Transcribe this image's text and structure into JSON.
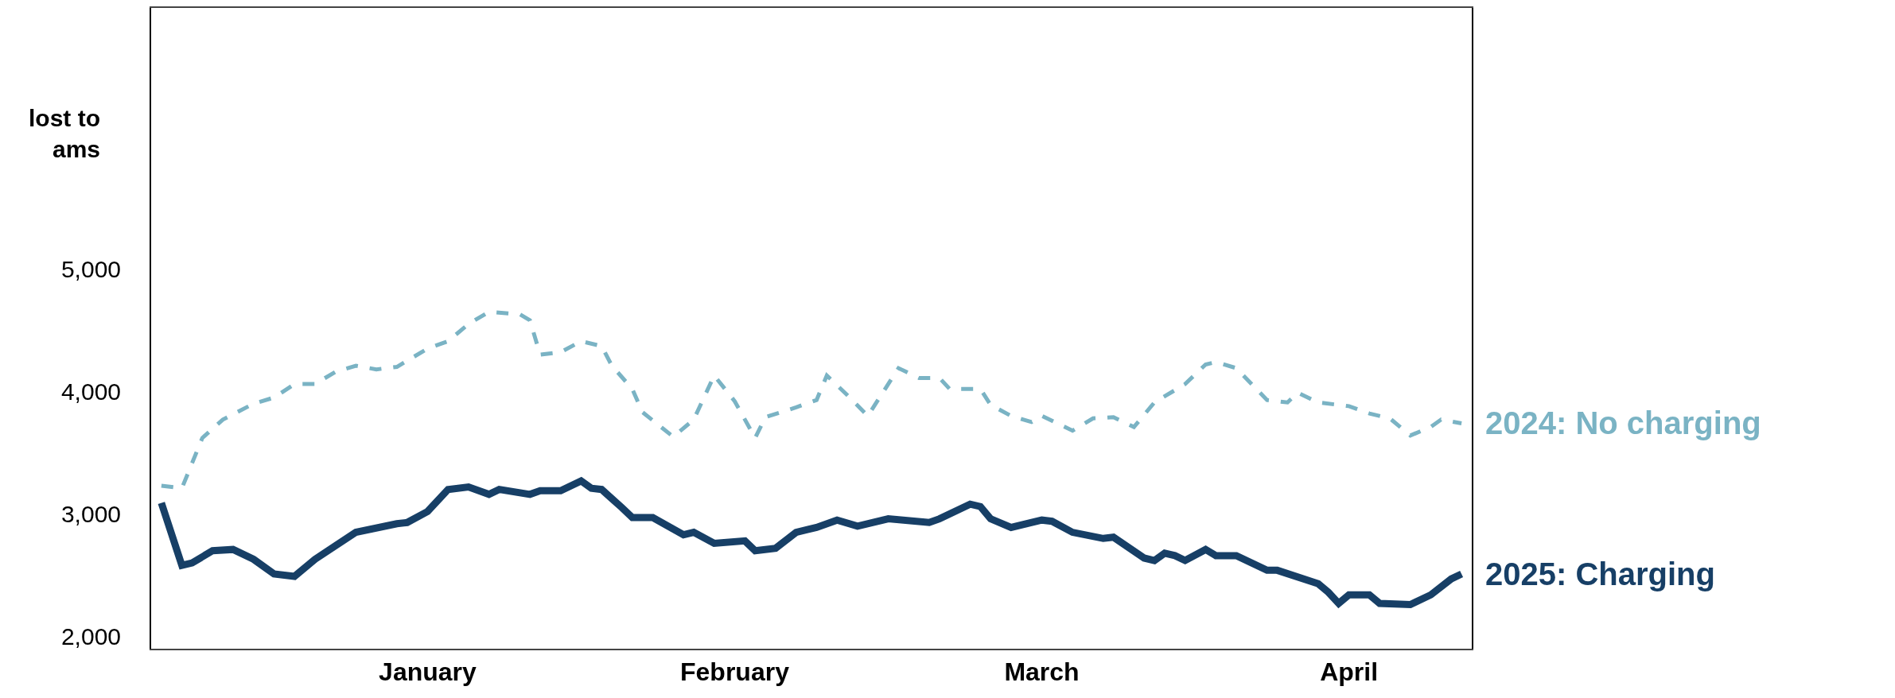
{
  "chart_data": {
    "type": "line",
    "ylabel": "lost to\nams",
    "xlim": [
      "2024-12-19",
      "2025-04-27"
    ],
    "xticks": [
      {
        "value": "2025-01-15",
        "label": "January"
      },
      {
        "value": "2025-02-14",
        "label": "February"
      },
      {
        "value": "2025-03-16",
        "label": "March"
      },
      {
        "value": "2025-04-15",
        "label": "April"
      }
    ],
    "ylim": [
      1900,
      7130
    ],
    "yticks": [
      {
        "value": 2000,
        "label": "2,000"
      },
      {
        "value": 3000,
        "label": "3,000"
      },
      {
        "value": 4000,
        "label": "4,000"
      },
      {
        "value": 5000,
        "label": "5,000"
      }
    ],
    "grid": false,
    "legend": false,
    "marker": "none",
    "series": [
      {
        "name": "2024: No charging",
        "color": "#7ab3c4",
        "line_style": "dashed",
        "x": [
          "2024-12-20",
          "2024-12-22",
          "2024-12-24",
          "2024-12-26",
          "2024-12-29",
          "2024-12-31",
          "2025-01-02",
          "2025-01-04",
          "2025-01-06",
          "2025-01-08",
          "2025-01-10",
          "2025-01-12",
          "2025-01-15",
          "2025-01-17",
          "2025-01-19",
          "2025-01-21",
          "2025-01-24",
          "2025-01-25",
          "2025-01-26",
          "2025-01-28",
          "2025-01-30",
          "2025-02-01",
          "2025-02-02",
          "2025-02-04",
          "2025-02-05",
          "2025-02-08",
          "2025-02-10",
          "2025-02-12",
          "2025-02-14",
          "2025-02-16",
          "2025-02-17",
          "2025-02-20",
          "2025-02-22",
          "2025-02-23",
          "2025-02-25",
          "2025-02-27",
          "2025-02-28",
          "2025-03-02",
          "2025-03-04",
          "2025-03-06",
          "2025-03-07",
          "2025-03-10",
          "2025-03-11",
          "2025-03-13",
          "2025-03-15",
          "2025-03-16",
          "2025-03-19",
          "2025-03-21",
          "2025-03-23",
          "2025-03-25",
          "2025-03-27",
          "2025-03-30",
          "2025-04-01",
          "2025-04-02",
          "2025-04-04",
          "2025-04-07",
          "2025-04-09",
          "2025-04-10",
          "2025-04-12",
          "2025-04-15",
          "2025-04-17",
          "2025-04-19",
          "2025-04-21",
          "2025-04-23",
          "2025-04-24",
          "2025-04-26"
        ],
        "values": [
          3230,
          3210,
          3620,
          3770,
          3900,
          3950,
          4060,
          4060,
          4160,
          4210,
          4180,
          4200,
          4350,
          4410,
          4550,
          4650,
          4630,
          4580,
          4300,
          4320,
          4410,
          4370,
          4210,
          4020,
          3830,
          3630,
          3770,
          4130,
          3920,
          3620,
          3790,
          3870,
          3930,
          4130,
          3970,
          3800,
          3930,
          4190,
          4110,
          4110,
          4020,
          4020,
          3890,
          3800,
          3750,
          3800,
          3680,
          3780,
          3790,
          3710,
          3910,
          4060,
          4220,
          4240,
          4190,
          3930,
          3910,
          3990,
          3910,
          3880,
          3820,
          3780,
          3640,
          3710,
          3770,
          3740
        ]
      },
      {
        "name": "2025: Charging",
        "color": "#173f66",
        "line_style": "solid",
        "x": [
          "2024-12-20",
          "2024-12-22",
          "2024-12-23",
          "2024-12-25",
          "2024-12-27",
          "2024-12-29",
          "2024-12-31",
          "2025-01-02",
          "2025-01-04",
          "2025-01-06",
          "2025-01-08",
          "2025-01-12",
          "2025-01-13",
          "2025-01-15",
          "2025-01-17",
          "2025-01-19",
          "2025-01-21",
          "2025-01-22",
          "2025-01-25",
          "2025-01-26",
          "2025-01-28",
          "2025-01-30",
          "2025-01-31",
          "2025-02-01",
          "2025-02-03",
          "2025-02-04",
          "2025-02-06",
          "2025-02-09",
          "2025-02-10",
          "2025-02-12",
          "2025-02-15",
          "2025-02-16",
          "2025-02-18",
          "2025-02-20",
          "2025-02-22",
          "2025-02-24",
          "2025-02-26",
          "2025-03-01",
          "2025-03-05",
          "2025-03-06",
          "2025-03-09",
          "2025-03-10",
          "2025-03-11",
          "2025-03-13",
          "2025-03-16",
          "2025-03-17",
          "2025-03-19",
          "2025-03-22",
          "2025-03-23",
          "2025-03-26",
          "2025-03-27",
          "2025-03-28",
          "2025-03-29",
          "2025-03-30",
          "2025-04-01",
          "2025-04-02",
          "2025-04-04",
          "2025-04-07",
          "2025-04-08",
          "2025-04-12",
          "2025-04-13",
          "2025-04-14",
          "2025-04-15",
          "2025-04-17",
          "2025-04-18",
          "2025-04-21",
          "2025-04-23",
          "2025-04-25",
          "2025-04-26"
        ],
        "values": [
          3090,
          2580,
          2600,
          2700,
          2710,
          2630,
          2510,
          2490,
          2630,
          2740,
          2850,
          2920,
          2930,
          3020,
          3200,
          3220,
          3160,
          3200,
          3160,
          3190,
          3190,
          3270,
          3210,
          3200,
          3050,
          2970,
          2970,
          2830,
          2850,
          2760,
          2780,
          2700,
          2720,
          2850,
          2890,
          2950,
          2900,
          2960,
          2930,
          2960,
          3080,
          3060,
          2960,
          2890,
          2950,
          2940,
          2850,
          2800,
          2810,
          2640,
          2620,
          2680,
          2660,
          2620,
          2710,
          2660,
          2660,
          2540,
          2540,
          2430,
          2360,
          2270,
          2340,
          2340,
          2270,
          2260,
          2340,
          2470,
          2510
        ]
      }
    ]
  }
}
